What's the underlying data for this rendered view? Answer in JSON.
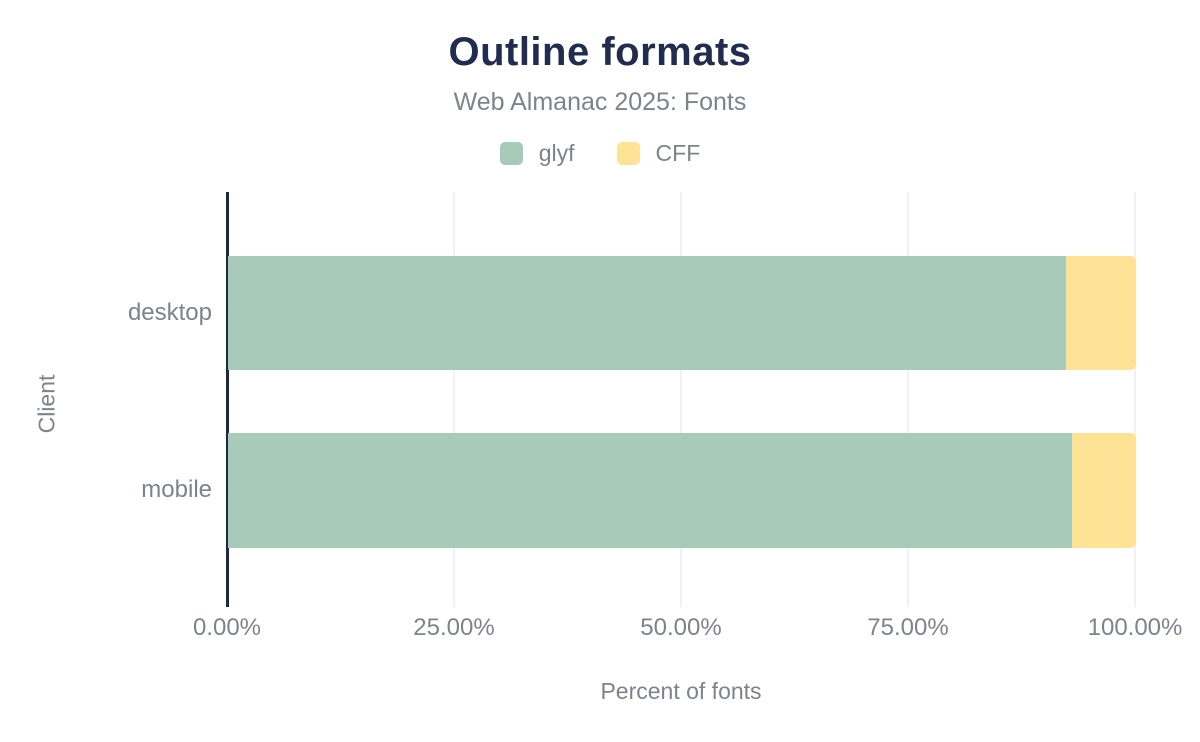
{
  "title": "Outline formats",
  "subtitle": "Web Almanac 2025: Fonts",
  "x_axis_title": "Percent of fonts",
  "y_axis_title": "Client",
  "style": {
    "title_color": "#222c4f",
    "text_color": "#7e838b",
    "axis_color": "#1b2946",
    "grid_color": "#f1f1f1",
    "background": "#ffffff",
    "glyf_color": "#a8cab9",
    "cff_color": "#fee397"
  },
  "chart_data": {
    "type": "bar",
    "orientation": "horizontal",
    "stacked": true,
    "title": "Outline formats",
    "subtitle": "Web Almanac 2025: Fonts",
    "xlabel": "Percent of fonts",
    "ylabel": "Client",
    "categories": [
      "desktop",
      "mobile"
    ],
    "series": [
      {
        "name": "glyf",
        "color": "#a8cab9",
        "values": [
          92.3,
          92.9
        ]
      },
      {
        "name": "CFF",
        "color": "#fee397",
        "values": [
          7.7,
          7.1
        ]
      }
    ],
    "xlim": [
      0,
      100
    ],
    "x_ticks": [
      "0.00%",
      "25.00%",
      "50.00%",
      "75.00%",
      "100.00%"
    ],
    "grid": true,
    "gridline_positions_pct": [
      25,
      50,
      75,
      100
    ],
    "legend_position": "top"
  }
}
